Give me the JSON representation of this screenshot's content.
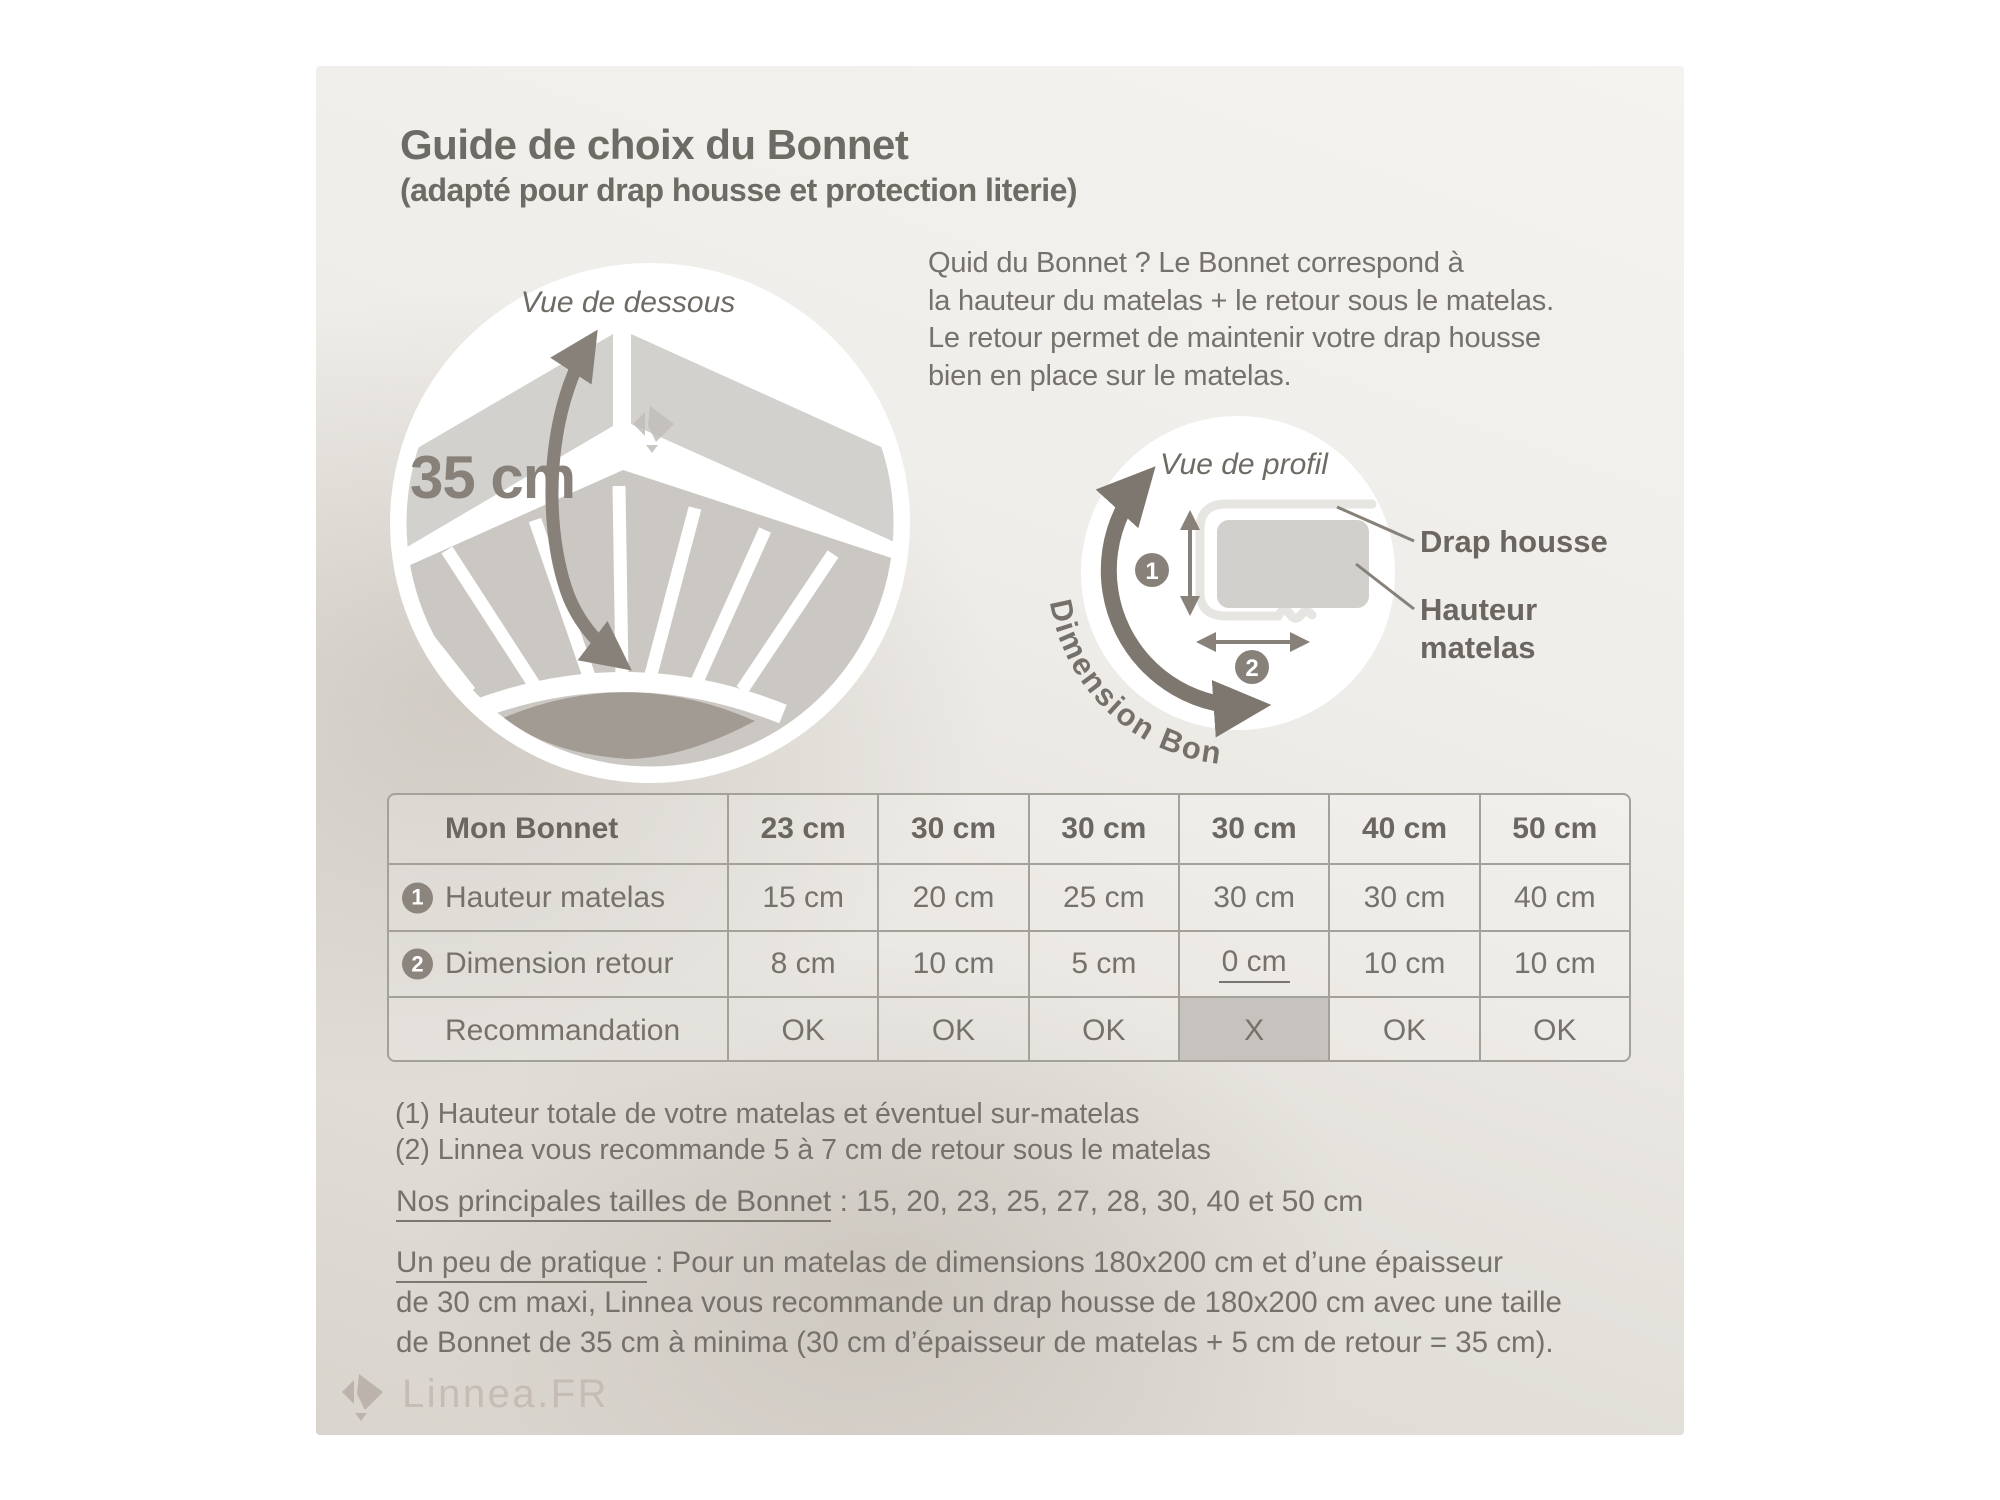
{
  "page": {
    "title_line1": "Guide de choix du Bonnet",
    "title_line2": "(adapté pour drap housse et protection literie)"
  },
  "intro": {
    "lines": [
      "Quid du Bonnet ? Le Bonnet correspond à",
      "la hauteur du matelas + le retour sous le matelas.",
      "Le retour permet de maintenir votre drap housse",
      "bien en place sur le matelas."
    ]
  },
  "bottom_view": {
    "caption": "Vue de dessous",
    "measurement": "35 cm"
  },
  "profile_view": {
    "caption": "Vue de profil",
    "curved_label": "Dimension Bonnet",
    "badge1": "1",
    "badge2": "2",
    "label_drap_housse": "Drap housse",
    "label_hauteur_line1": "Hauteur",
    "label_hauteur_line2": "matelas"
  },
  "table": {
    "header": [
      "Mon Bonnet",
      "23 cm",
      "30 cm",
      "30 cm",
      "30 cm",
      "40 cm",
      "50 cm"
    ],
    "rows": [
      {
        "badge": "1",
        "label": "Hauteur matelas",
        "values": [
          "15 cm",
          "20 cm",
          "25 cm",
          "30 cm",
          "30 cm",
          "40 cm"
        ]
      },
      {
        "badge": "2",
        "label": "Dimension retour",
        "values": [
          "8 cm",
          "10 cm",
          "5 cm",
          "0 cm",
          "10 cm",
          "10 cm"
        ]
      },
      {
        "badge": "",
        "label": "Recommandation",
        "values": [
          "OK",
          "OK",
          "OK",
          "X",
          "OK",
          "OK"
        ]
      }
    ],
    "underline_cell": {
      "row": 1,
      "col": 3
    },
    "highlight_cell": {
      "row": 2,
      "col": 3
    }
  },
  "footnotes": [
    "(1) Hauteur totale de votre matelas et éventuel sur-matelas",
    "(2) Linnea vous recommande 5 à 7 cm de retour sous le matelas"
  ],
  "sizes_note": {
    "underlined": "Nos principales tailles de Bonnet",
    "rest": " : 15, 20, 23, 25, 27, 28, 30, 40 et 50 cm"
  },
  "practice": {
    "underlined": "Un peu de pratique",
    "line1_rest": " : Pour un matelas de dimensions 180x200 cm et d’une épaisseur",
    "line2": "de 30 cm maxi, Linnea vous recommande un drap housse de 180x200 cm avec une taille",
    "line3": "de Bonnet de 35 cm à minima (30 cm d’épaisseur de matelas + 5 cm de retour = 35 cm)."
  },
  "logo": {
    "text": "Linnea.FR"
  },
  "colors": {
    "accent_arrow": "#87817a",
    "text": "#76716b",
    "heading": "#6b6660",
    "table_border": "#a4a09a",
    "highlight_cell": "#c6c3bf",
    "badge": "#8b857e",
    "illustration_light": "#d3d1ce",
    "illustration_mid": "#cbc8c4",
    "illustration_dark": "#a29b94",
    "logo": "#c3bab3"
  }
}
